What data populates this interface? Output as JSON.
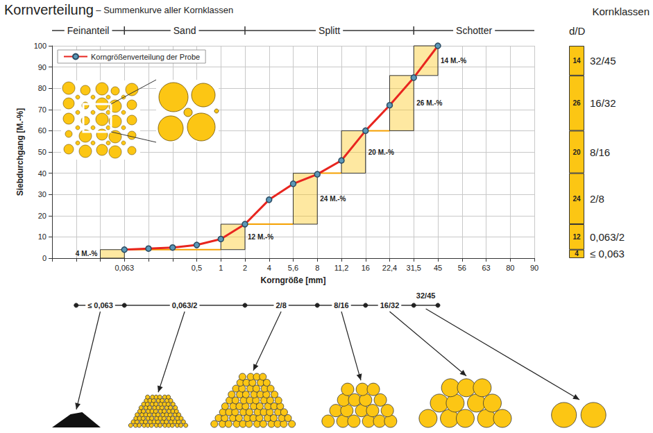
{
  "title": "Kornverteilung",
  "subtitle": "– Summenkurve aller Kornklassen",
  "chart_data": {
    "type": "line",
    "x_label": "Korngröße [mm]",
    "y_label": "Siebdurchgang [M.-%]",
    "categories": [
      null,
      null,
      null,
      "0,063",
      null,
      null,
      "0,5",
      "1",
      "2",
      "4",
      "5,6",
      "8",
      "11,2",
      "16",
      "22,4",
      "31,5",
      "45",
      "56",
      "63",
      "80",
      "90"
    ],
    "series": [
      {
        "name": "Korngrößenverteilung der Probe",
        "color": "#e8251f",
        "marker": "circle",
        "values": [
          null,
          null,
          null,
          4,
          4.5,
          5,
          6.2,
          9,
          16,
          27.5,
          35,
          39.5,
          46,
          60,
          72,
          85,
          100,
          null,
          null,
          null,
          null
        ]
      }
    ],
    "ylim": [
      0,
      100
    ],
    "yticks": [
      0,
      10,
      20,
      30,
      40,
      50,
      60,
      70,
      80,
      90,
      100
    ],
    "grid": true,
    "legend": "upper left",
    "fractions": {
      "labels": [
        "Feinanteil",
        "Sand",
        "Splitt",
        "Schotter"
      ],
      "bounds": [
        "0,063",
        "2",
        "31,5"
      ]
    },
    "classes": {
      "title": "Kornklassen",
      "subtitle": "d/D",
      "names": [
        "≤ 0,063",
        "0,063/2",
        "2/8",
        "8/16",
        "16/32",
        "32/45"
      ],
      "upper": [
        "0,063",
        "2",
        "8",
        "16",
        "31,5",
        "45"
      ],
      "values": [
        4,
        12,
        24,
        20,
        26,
        14
      ],
      "value_labels": [
        "4 M.-%",
        "12 M.-%",
        "24 M.-%",
        "20 M.-%",
        "26 M.-%",
        "14 M.-%"
      ],
      "color": "#fcc614"
    }
  }
}
